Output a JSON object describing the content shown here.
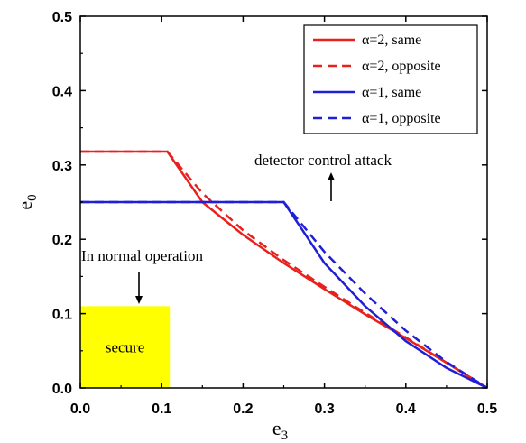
{
  "chart_data": {
    "type": "line",
    "title": "",
    "xlabel": "e",
    "xlabel_sub": "3",
    "ylabel": "e",
    "ylabel_sub": "0",
    "xlim": [
      0,
      0.5
    ],
    "ylim": [
      0,
      0.5
    ],
    "xticks": [
      "0.0",
      "0.1",
      "0.2",
      "0.3",
      "0.4",
      "0.5"
    ],
    "yticks": [
      "0.0",
      "0.1",
      "0.2",
      "0.3",
      "0.4",
      "0.5"
    ],
    "grid": false,
    "legend_position": "top-right",
    "series": [
      {
        "name": "α=2, same",
        "color": "#e8211d",
        "dash": "solid",
        "x": [
          0,
          0.107,
          0.15,
          0.2,
          0.25,
          0.3,
          0.35,
          0.4,
          0.45,
          0.5
        ],
        "y": [
          0.318,
          0.318,
          0.25,
          0.206,
          0.168,
          0.133,
          0.099,
          0.067,
          0.034,
          0.0
        ]
      },
      {
        "name": "α=2, opposite",
        "color": "#e8211d",
        "dash": "dashed",
        "x": [
          0,
          0.107,
          0.15,
          0.2,
          0.25,
          0.3,
          0.35,
          0.4,
          0.45,
          0.5
        ],
        "y": [
          0.318,
          0.318,
          0.262,
          0.212,
          0.172,
          0.136,
          0.101,
          0.068,
          0.034,
          0.0
        ]
      },
      {
        "name": "α=1, same",
        "color": "#1f1fd6",
        "dash": "solid",
        "x": [
          0,
          0.15,
          0.2,
          0.25,
          0.3,
          0.35,
          0.4,
          0.45,
          0.5
        ],
        "y": [
          0.25,
          0.25,
          0.25,
          0.25,
          0.168,
          0.11,
          0.063,
          0.027,
          0.0
        ]
      },
      {
        "name": "α=1, opposite",
        "color": "#1f1fd6",
        "dash": "dashed",
        "x": [
          0,
          0.15,
          0.2,
          0.25,
          0.3,
          0.35,
          0.4,
          0.45,
          0.5
        ],
        "y": [
          0.25,
          0.25,
          0.25,
          0.25,
          0.183,
          0.127,
          0.077,
          0.035,
          0.0
        ]
      }
    ],
    "secure_region": {
      "label": "secure",
      "x": [
        0,
        0.11
      ],
      "y": [
        0,
        0.11
      ],
      "color": "#ffff00"
    },
    "annotations": [
      {
        "text": "In normal operation",
        "arrow": "down"
      },
      {
        "text": "detector control attack",
        "arrow": "up"
      }
    ]
  }
}
